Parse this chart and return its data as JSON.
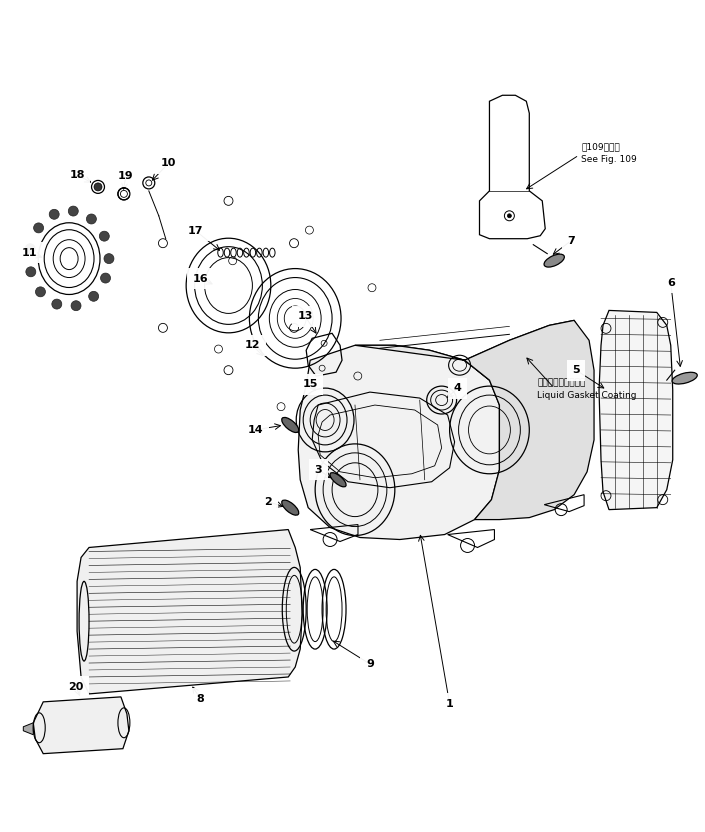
{
  "background": "#ffffff",
  "line_color": "#000000",
  "fig_width": 7.05,
  "fig_height": 8.32,
  "dpi": 100,
  "annotations": {
    "see_fig_jp": "第109図参照",
    "see_fig_en": "See Fig. 109",
    "liquid_jp": "液状ガスケット塗布",
    "liquid_en": "Liquid Gasket Coating"
  }
}
